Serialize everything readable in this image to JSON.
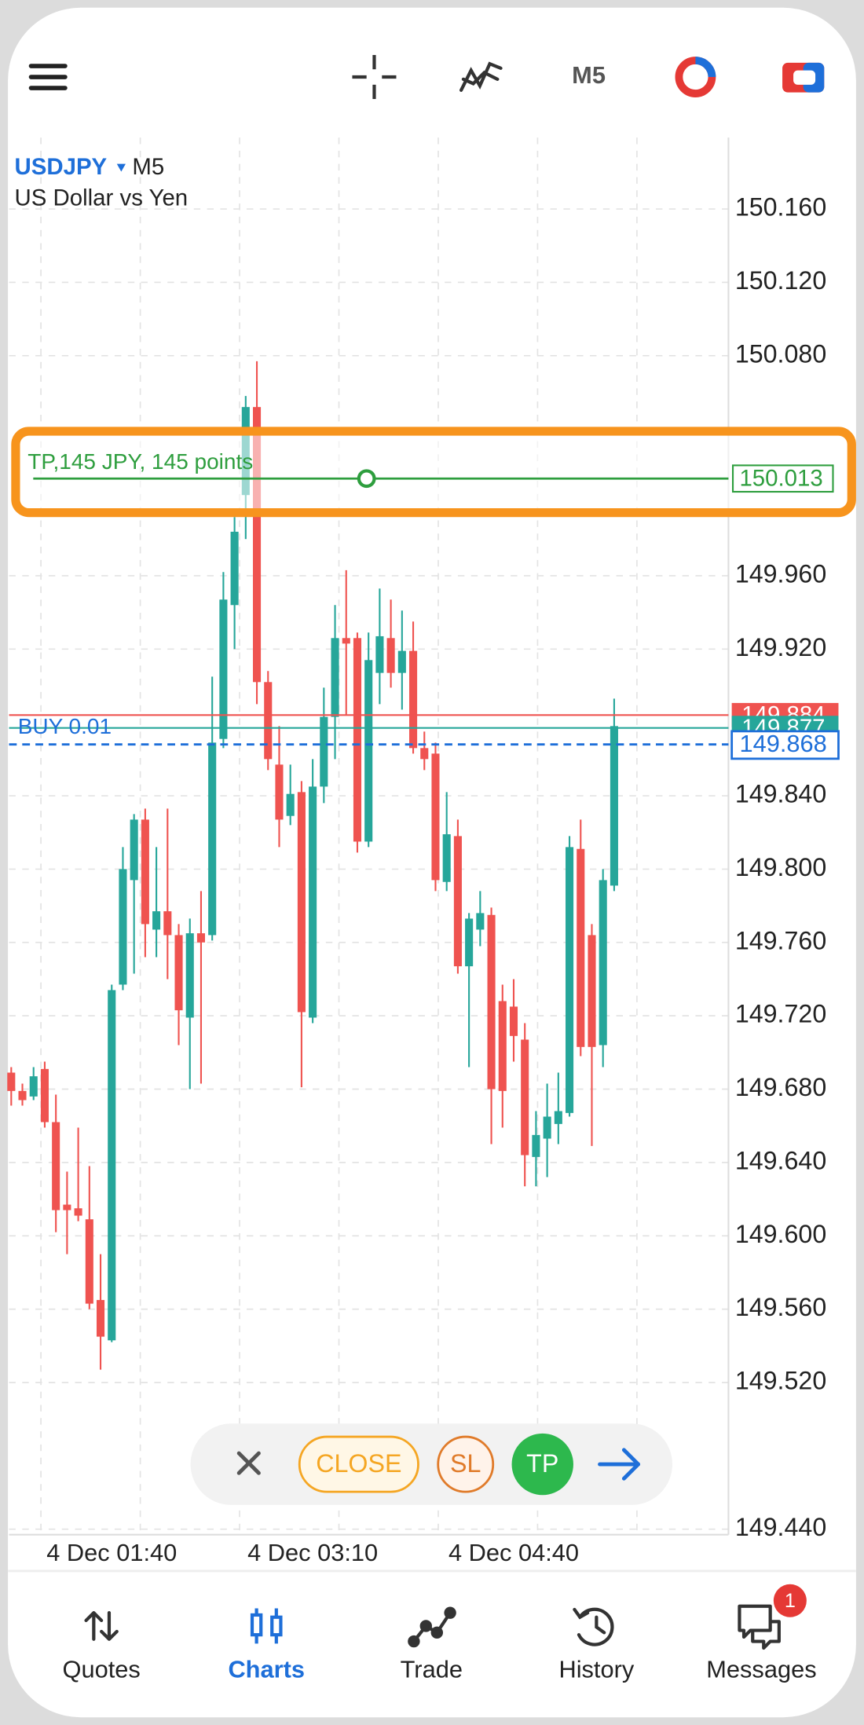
{
  "header": {
    "timeframe": "M5"
  },
  "chart_data": {
    "type": "candlestick",
    "symbol": "USDJPY",
    "timeframe": "M5",
    "description": "US Dollar vs Yen",
    "categories": [
      null,
      null,
      null,
      null,
      null,
      null,
      null,
      null,
      null,
      "4 Dec 01:40",
      null,
      null,
      null,
      null,
      null,
      null,
      null,
      null,
      null,
      null,
      null,
      null,
      null,
      null,
      null,
      null,
      null,
      "4 Dec 03:10",
      null,
      null,
      null,
      null,
      null,
      null,
      null,
      null,
      null,
      null,
      null,
      null,
      null,
      null,
      null,
      null,
      null,
      "4 Dec 04:40",
      null,
      null,
      null,
      null,
      null,
      null,
      null,
      null,
      null
    ],
    "open": [
      149.689,
      149.679,
      149.676,
      149.691,
      149.662,
      149.617,
      149.615,
      149.609,
      149.565,
      149.543,
      149.737,
      149.794,
      149.827,
      149.767,
      149.777,
      149.764,
      149.719,
      149.765,
      149.764,
      149.871,
      149.944,
      150.004,
      150.052,
      149.902,
      149.857,
      149.829,
      149.842,
      149.719,
      149.845,
      149.883,
      149.926,
      149.926,
      149.815,
      149.907,
      149.926,
      149.907,
      149.919,
      149.866,
      149.863,
      149.793,
      149.818,
      149.747,
      149.767,
      149.775,
      149.728,
      149.725,
      149.707,
      149.643,
      149.653,
      149.661,
      149.667,
      149.811,
      149.764,
      149.704,
      149.791
    ],
    "high": [
      149.692,
      149.683,
      149.692,
      149.695,
      149.677,
      149.635,
      149.659,
      149.638,
      149.59,
      149.737,
      149.812,
      149.83,
      149.833,
      149.812,
      149.833,
      149.77,
      149.773,
      149.788,
      149.905,
      149.962,
      149.992,
      150.058,
      150.077,
      149.908,
      149.878,
      149.857,
      149.848,
      149.86,
      149.899,
      149.944,
      149.963,
      149.929,
      149.929,
      149.953,
      149.947,
      149.941,
      149.935,
      149.875,
      149.869,
      149.842,
      149.827,
      149.776,
      149.788,
      149.779,
      149.737,
      149.74,
      149.716,
      149.668,
      149.683,
      149.689,
      149.818,
      149.827,
      149.77,
      149.8,
      149.893
    ],
    "low": [
      149.671,
      149.671,
      149.674,
      149.659,
      149.602,
      149.59,
      149.608,
      149.56,
      149.527,
      149.542,
      149.734,
      149.743,
      149.752,
      149.752,
      149.74,
      149.704,
      149.68,
      149.683,
      149.761,
      149.866,
      149.92,
      149.98,
      149.89,
      149.854,
      149.812,
      149.824,
      149.681,
      149.716,
      149.836,
      149.86,
      149.884,
      149.809,
      149.812,
      149.89,
      149.899,
      149.887,
      149.863,
      149.854,
      149.788,
      149.788,
      149.743,
      149.692,
      149.758,
      149.65,
      149.659,
      149.695,
      149.627,
      149.627,
      149.632,
      149.65,
      149.665,
      149.698,
      149.649,
      149.692,
      149.788
    ],
    "close": [
      149.679,
      149.674,
      149.687,
      149.662,
      149.614,
      149.614,
      149.611,
      149.563,
      149.545,
      149.734,
      149.8,
      149.827,
      149.77,
      149.777,
      149.764,
      149.723,
      149.765,
      149.76,
      149.869,
      149.947,
      149.984,
      150.052,
      149.902,
      149.86,
      149.827,
      149.841,
      149.722,
      149.845,
      149.883,
      149.926,
      149.923,
      149.815,
      149.914,
      149.927,
      149.907,
      149.919,
      149.866,
      149.86,
      149.794,
      149.819,
      149.747,
      149.773,
      149.776,
      149.68,
      149.679,
      149.709,
      149.644,
      149.655,
      149.665,
      149.668,
      149.812,
      149.703,
      149.703,
      149.794,
      149.878
    ],
    "colors": {
      "up": "#26a69a",
      "down": "#ef5350"
    },
    "ylim": [
      149.437,
      150.199
    ],
    "yticks": [
      {
        "value": 150.16,
        "label": "150.160"
      },
      {
        "value": 150.12,
        "label": "150.120"
      },
      {
        "value": 150.08,
        "label": "150.080"
      },
      {
        "value": 149.96,
        "label": "149.960"
      },
      {
        "value": 149.92,
        "label": "149.920"
      },
      {
        "value": 149.84,
        "label": "149.840"
      },
      {
        "value": 149.8,
        "label": "149.800"
      },
      {
        "value": 149.76,
        "label": "149.760"
      },
      {
        "value": 149.72,
        "label": "149.720"
      },
      {
        "value": 149.68,
        "label": "149.680"
      },
      {
        "value": 149.64,
        "label": "149.640"
      },
      {
        "value": 149.6,
        "label": "149.600"
      },
      {
        "value": 149.56,
        "label": "149.560"
      },
      {
        "value": 149.52,
        "label": "149.520"
      },
      {
        "value": 149.44,
        "label": "149.440"
      }
    ],
    "grid": true,
    "price_lines": [
      {
        "value": 149.884,
        "color": "#ef5350"
      },
      {
        "value": 149.877,
        "color": "#26a69a"
      }
    ],
    "position": {
      "label": "BUY 0.01",
      "value": 149.868,
      "color": "#1e6fd9"
    },
    "take_profit": {
      "label": "TP,145 JPY, 145 points",
      "value": 150.013,
      "color": "#2e9e3e"
    }
  },
  "toolbar": {
    "close": "CLOSE",
    "sl": "SL",
    "tp": "TP"
  },
  "nav": {
    "items": [
      {
        "label": "Quotes",
        "active": false
      },
      {
        "label": "Charts",
        "active": true
      },
      {
        "label": "Trade",
        "active": false
      },
      {
        "label": "History",
        "active": false
      },
      {
        "label": "Messages",
        "active": false,
        "badge": 1
      }
    ]
  }
}
